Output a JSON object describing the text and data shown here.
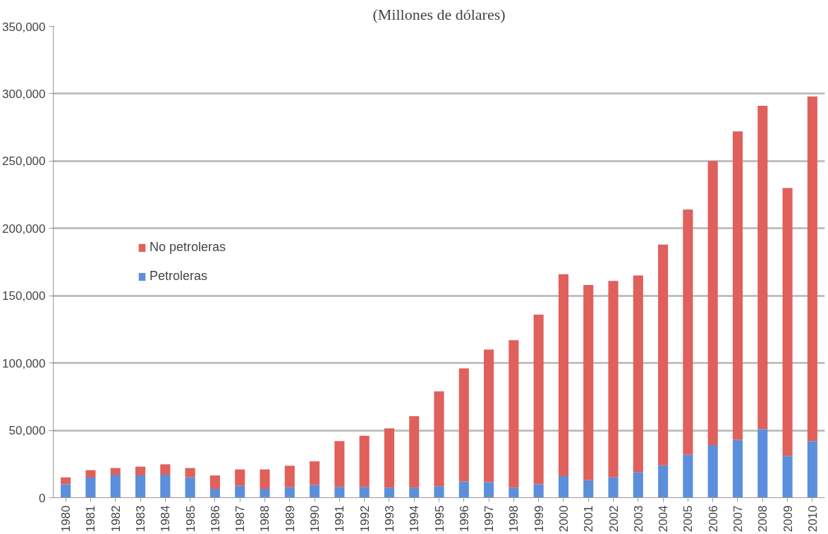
{
  "chart_data": {
    "type": "bar",
    "title": "(Millones de dólares)",
    "stacked": true,
    "categories": [
      "1980",
      "1981",
      "1982",
      "1983",
      "1984",
      "1985",
      "1986",
      "1987",
      "1988",
      "1989",
      "1990",
      "1991",
      "1992",
      "1993",
      "1994",
      "1995",
      "1996",
      "1997",
      "1998",
      "1999",
      "2000",
      "2001",
      "2002",
      "2003",
      "2004",
      "2005",
      "2006",
      "2007",
      "2008",
      "2009",
      "2010"
    ],
    "series": [
      {
        "name": "Petroleras",
        "color": "#5b8fdc",
        "values": [
          10000,
          14900,
          17000,
          16500,
          17000,
          15000,
          6600,
          8800,
          6600,
          7700,
          9400,
          8000,
          8000,
          7500,
          7500,
          8500,
          12000,
          11500,
          7500,
          10000,
          16000,
          13000,
          15000,
          19000,
          24000,
          32000,
          39000,
          43000,
          51000,
          31000,
          42000
        ]
      },
      {
        "name": "No petroleras",
        "color": "#e0605c",
        "values": [
          5000,
          5500,
          5000,
          6500,
          7800,
          7000,
          9900,
          12200,
          14400,
          16000,
          17600,
          34000,
          38000,
          44000,
          53000,
          70500,
          84000,
          98500,
          109500,
          126000,
          150000,
          145000,
          146000,
          146000,
          164000,
          182000,
          211000,
          229000,
          240000,
          199000,
          256000
        ]
      }
    ],
    "ylim": [
      0,
      350000
    ],
    "yticks": [
      {
        "value": 0,
        "label": "0"
      },
      {
        "value": 50000,
        "label": "50,000"
      },
      {
        "value": 100000,
        "label": "100,000"
      },
      {
        "value": 150000,
        "label": "150,000"
      },
      {
        "value": 200000,
        "label": "200,000"
      },
      {
        "value": 250000,
        "label": "250,000"
      },
      {
        "value": 300000,
        "label": "300,000"
      },
      {
        "value": 350000,
        "label": "350,000"
      }
    ],
    "grid": "y",
    "legend": "left"
  }
}
